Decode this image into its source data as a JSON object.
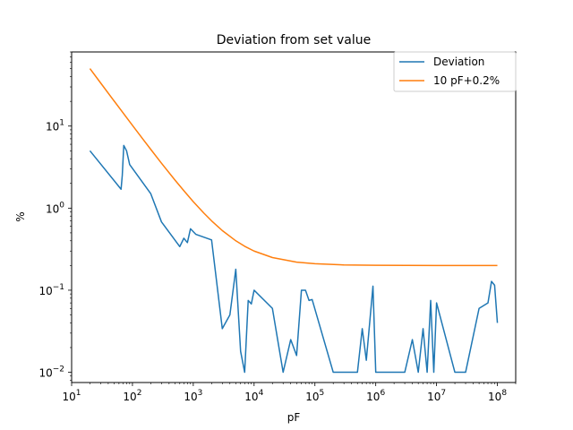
{
  "chart_data": {
    "type": "line",
    "title": "Deviation from set value",
    "xlabel": "pF",
    "ylabel": "%",
    "xscale": "log",
    "yscale": "log",
    "xlim": [
      10,
      200000000
    ],
    "ylim": [
      0.0075,
      80
    ],
    "grid": false,
    "legend_position": "top-right",
    "x_ticks": [
      {
        "value": 10,
        "base": "10",
        "exp": "1"
      },
      {
        "value": 100,
        "base": "10",
        "exp": "2"
      },
      {
        "value": 1000,
        "base": "10",
        "exp": "3"
      },
      {
        "value": 10000,
        "base": "10",
        "exp": "4"
      },
      {
        "value": 100000,
        "base": "10",
        "exp": "5"
      },
      {
        "value": 1000000,
        "base": "10",
        "exp": "6"
      },
      {
        "value": 10000000,
        "base": "10",
        "exp": "7"
      },
      {
        "value": 100000000,
        "base": "10",
        "exp": "8"
      }
    ],
    "y_ticks": [
      {
        "value": 0.01,
        "base": "10",
        "exp": "−2"
      },
      {
        "value": 0.1,
        "base": "10",
        "exp": "−1"
      },
      {
        "value": 1,
        "base": "10",
        "exp": "0"
      },
      {
        "value": 10,
        "base": "10",
        "exp": "1"
      }
    ],
    "series": [
      {
        "name": "Deviation",
        "color": "#1f77b4",
        "points": [
          [
            20,
            5.0
          ],
          [
            65,
            1.7
          ],
          [
            68,
            2.5
          ],
          [
            72,
            5.8
          ],
          [
            80,
            5.0
          ],
          [
            90,
            3.4
          ],
          [
            200,
            1.5
          ],
          [
            300,
            0.68
          ],
          [
            600,
            0.34
          ],
          [
            700,
            0.43
          ],
          [
            800,
            0.38
          ],
          [
            900,
            0.56
          ],
          [
            1100,
            0.48
          ],
          [
            2000,
            0.41
          ],
          [
            3000,
            0.034
          ],
          [
            4000,
            0.05
          ],
          [
            5000,
            0.18
          ],
          [
            6000,
            0.018
          ],
          [
            7000,
            0.01
          ],
          [
            8000,
            0.075
          ],
          [
            9000,
            0.068
          ],
          [
            10000,
            0.1
          ],
          [
            20000,
            0.06
          ],
          [
            30000,
            0.01
          ],
          [
            40000,
            0.025
          ],
          [
            50000,
            0.016
          ],
          [
            60000,
            0.1
          ],
          [
            70000,
            0.1
          ],
          [
            80000,
            0.075
          ],
          [
            90000,
            0.077
          ],
          [
            200000,
            0.01
          ],
          [
            500000,
            0.01
          ],
          [
            600000,
            0.034
          ],
          [
            700000,
            0.014
          ],
          [
            900000,
            0.112
          ],
          [
            1000000,
            0.01
          ],
          [
            3000000,
            0.01
          ],
          [
            4000000,
            0.025
          ],
          [
            5000000,
            0.01
          ],
          [
            6000000,
            0.034
          ],
          [
            7000000,
            0.01
          ],
          [
            8000000,
            0.075
          ],
          [
            9000000,
            0.01
          ],
          [
            10000000,
            0.07
          ],
          [
            20000000,
            0.01
          ],
          [
            30000000,
            0.01
          ],
          [
            50000000,
            0.06
          ],
          [
            70000000,
            0.07
          ],
          [
            80000000,
            0.128
          ],
          [
            90000000,
            0.115
          ],
          [
            100000000,
            0.04
          ]
        ]
      },
      {
        "name": "10 pF+0.2%",
        "color": "#ff7f0e",
        "points": [
          [
            20,
            50.2
          ],
          [
            30,
            33.5
          ],
          [
            50,
            20.2
          ],
          [
            70,
            14.5
          ],
          [
            100,
            10.2
          ],
          [
            150,
            6.87
          ],
          [
            200,
            5.2
          ],
          [
            300,
            3.53
          ],
          [
            500,
            2.2
          ],
          [
            700,
            1.63
          ],
          [
            1000,
            1.2
          ],
          [
            1500,
            0.867
          ],
          [
            2000,
            0.7
          ],
          [
            3000,
            0.533
          ],
          [
            5000,
            0.4
          ],
          [
            7000,
            0.343
          ],
          [
            10000,
            0.3
          ],
          [
            20000,
            0.25
          ],
          [
            50000,
            0.22
          ],
          [
            100000,
            0.21
          ],
          [
            300000,
            0.2033
          ],
          [
            1000000,
            0.201
          ],
          [
            10000000,
            0.2001
          ],
          [
            100000000,
            0.2
          ]
        ]
      }
    ]
  }
}
